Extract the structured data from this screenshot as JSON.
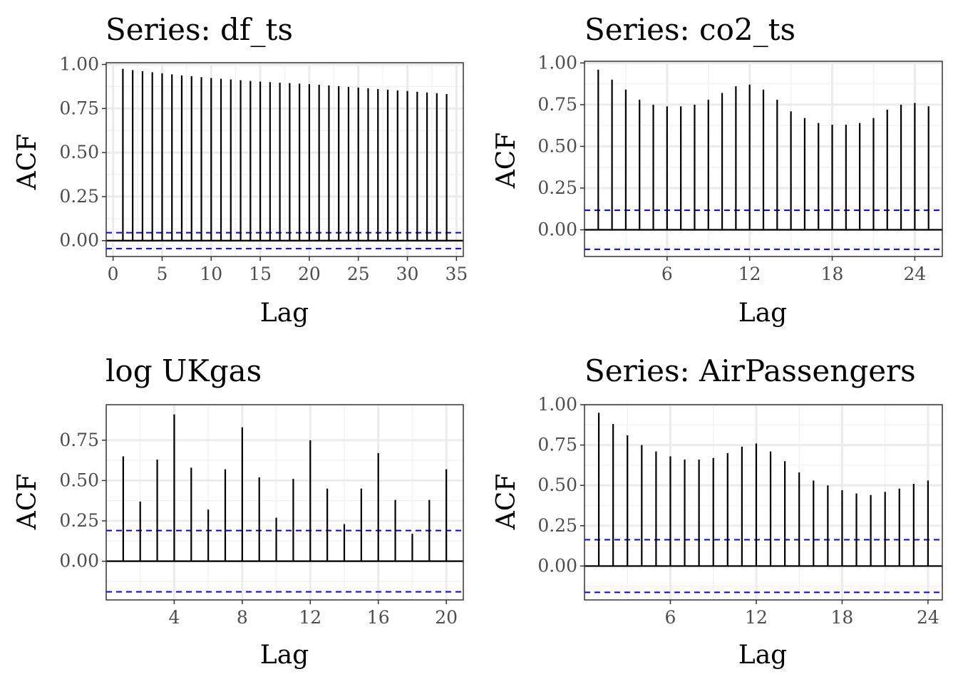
{
  "chart_data": [
    {
      "type": "bar",
      "title": "Series: df_ts",
      "xlabel": "Lag",
      "ylabel": "ACF",
      "xlim": [
        -0.7,
        35.7
      ],
      "ylim": [
        -0.09,
        1.01
      ],
      "xticks": [
        0,
        5,
        10,
        15,
        20,
        25,
        30,
        35
      ],
      "xtick_labels": [
        "0",
        "5",
        "10",
        "15",
        "20",
        "25",
        "30",
        "35"
      ],
      "yticks": [
        0,
        0.25,
        0.5,
        0.75,
        1.0
      ],
      "ytick_labels": [
        "0.00",
        "0.25",
        "0.50",
        "0.75",
        "1.00"
      ],
      "grid": true,
      "conf_limit": 0.045,
      "lags": [
        1,
        2,
        3,
        4,
        5,
        6,
        7,
        8,
        9,
        10,
        11,
        12,
        13,
        14,
        15,
        16,
        17,
        18,
        19,
        20,
        21,
        22,
        23,
        24,
        25,
        26,
        27,
        28,
        29,
        30,
        31,
        32,
        33,
        34
      ],
      "values": [
        0.975,
        0.968,
        0.962,
        0.956,
        0.95,
        0.944,
        0.938,
        0.933,
        0.928,
        0.923,
        0.919,
        0.915,
        0.911,
        0.907,
        0.903,
        0.9,
        0.897,
        0.894,
        0.891,
        0.888,
        0.885,
        0.881,
        0.877,
        0.873,
        0.869,
        0.865,
        0.861,
        0.857,
        0.853,
        0.849,
        0.845,
        0.841,
        0.837,
        0.832
      ]
    },
    {
      "type": "bar",
      "title": "Series: co2_ts",
      "xlabel": "Lag",
      "ylabel": "ACF",
      "xlim": [
        0.0,
        26.0
      ],
      "ylim": [
        -0.16,
        1.01
      ],
      "xticks": [
        6,
        12,
        18,
        24
      ],
      "xtick_labels": [
        "6",
        "12",
        "18",
        "24"
      ],
      "yticks": [
        0,
        0.25,
        0.5,
        0.75,
        1.0
      ],
      "ytick_labels": [
        "0.00",
        "0.25",
        "0.50",
        "0.75",
        "1.00"
      ],
      "grid": true,
      "conf_limit": 0.117,
      "lags": [
        1,
        2,
        3,
        4,
        5,
        6,
        7,
        8,
        9,
        10,
        11,
        12,
        13,
        14,
        15,
        16,
        17,
        18,
        19,
        20,
        21,
        22,
        23,
        24,
        25
      ],
      "values": [
        0.96,
        0.9,
        0.84,
        0.78,
        0.75,
        0.74,
        0.74,
        0.75,
        0.78,
        0.82,
        0.86,
        0.87,
        0.84,
        0.78,
        0.71,
        0.67,
        0.64,
        0.63,
        0.63,
        0.64,
        0.67,
        0.72,
        0.75,
        0.76,
        0.74
      ]
    },
    {
      "type": "bar",
      "title": "log UKgas",
      "xlabel": "Lag",
      "ylabel": "ACF",
      "xlim": [
        0.0,
        21.0
      ],
      "ylim": [
        -0.24,
        0.97
      ],
      "xticks": [
        4,
        8,
        12,
        16,
        20
      ],
      "xtick_labels": [
        "4",
        "8",
        "12",
        "16",
        "20"
      ],
      "yticks": [
        0,
        0.25,
        0.5,
        0.75
      ],
      "ytick_labels": [
        "0.00",
        "0.25",
        "0.50",
        "0.75"
      ],
      "grid": true,
      "conf_limit": 0.19,
      "lags": [
        1,
        2,
        3,
        4,
        5,
        6,
        7,
        8,
        9,
        10,
        11,
        12,
        13,
        14,
        15,
        16,
        17,
        18,
        19,
        20
      ],
      "values": [
        0.65,
        0.37,
        0.63,
        0.91,
        0.58,
        0.32,
        0.57,
        0.83,
        0.52,
        0.27,
        0.51,
        0.75,
        0.45,
        0.23,
        0.45,
        0.67,
        0.38,
        0.17,
        0.38,
        0.57
      ]
    },
    {
      "type": "bar",
      "title": "Series: AirPassengers",
      "xlabel": "Lag",
      "ylabel": "ACF",
      "xlim": [
        0.0,
        25.0
      ],
      "ylim": [
        -0.21,
        1.0
      ],
      "xticks": [
        6,
        12,
        18,
        24
      ],
      "xtick_labels": [
        "6",
        "12",
        "18",
        "24"
      ],
      "yticks": [
        0,
        0.25,
        0.5,
        0.75,
        1.0
      ],
      "ytick_labels": [
        "0.00",
        "0.25",
        "0.50",
        "0.75",
        "1.00"
      ],
      "grid": true,
      "conf_limit": 0.163,
      "lags": [
        1,
        2,
        3,
        4,
        5,
        6,
        7,
        8,
        9,
        10,
        11,
        12,
        13,
        14,
        15,
        16,
        17,
        18,
        19,
        20,
        21,
        22,
        23,
        24
      ],
      "values": [
        0.95,
        0.88,
        0.81,
        0.75,
        0.71,
        0.68,
        0.66,
        0.66,
        0.67,
        0.7,
        0.74,
        0.76,
        0.71,
        0.65,
        0.58,
        0.53,
        0.5,
        0.47,
        0.45,
        0.44,
        0.46,
        0.48,
        0.51,
        0.53
      ]
    }
  ]
}
